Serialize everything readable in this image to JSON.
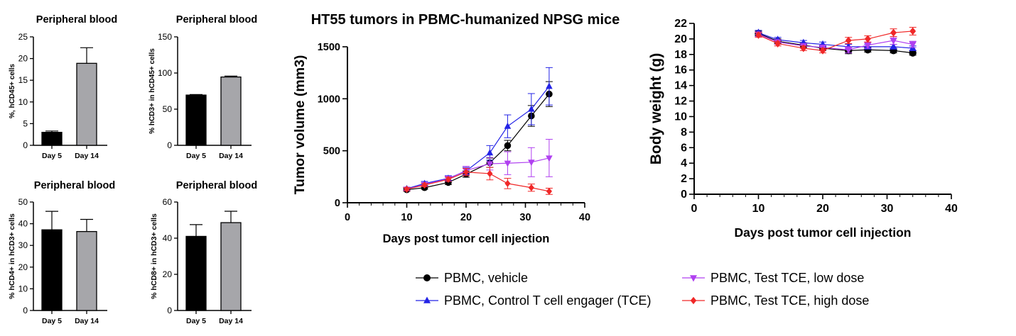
{
  "chart_data": [
    {
      "type": "bar",
      "title": "Peripheral blood",
      "ylabel": "%, hCD45+ cells",
      "categories": [
        "Day 5",
        "Day 14"
      ],
      "values": [
        3.0,
        18.9
      ],
      "errors": [
        0.3,
        3.6
      ],
      "colors": [
        "#000000",
        "#a6a6aa"
      ],
      "ylim": [
        0,
        25
      ],
      "yticks": [
        "0",
        "5",
        "10",
        "15",
        "20",
        "25"
      ]
    },
    {
      "type": "bar",
      "title": "Peripheral blood",
      "ylabel": "% hCD3+ in hCD45+ cells",
      "categories": [
        "Day 5",
        "Day 14"
      ],
      "values": [
        69.5,
        94.5
      ],
      "errors": [
        0.8,
        1.2
      ],
      "colors": [
        "#000000",
        "#a6a6aa"
      ],
      "ylim": [
        0,
        150
      ],
      "yticks": [
        "0",
        "50",
        "100",
        "150"
      ]
    },
    {
      "type": "bar",
      "title": "Peripheral blood",
      "ylabel": "% hCD4+ in hCD3+ cells",
      "categories": [
        "Day 5",
        "Day 14"
      ],
      "values": [
        37.2,
        36.4
      ],
      "errors": [
        8.5,
        5.6
      ],
      "colors": [
        "#000000",
        "#a6a6aa"
      ],
      "ylim": [
        0,
        50
      ],
      "yticks": [
        "0",
        "10",
        "20",
        "30",
        "40",
        "50"
      ]
    },
    {
      "type": "bar",
      "title": "Peripheral blood",
      "ylabel": "% hCD8+ in hCD3+ cells",
      "categories": [
        "Day 5",
        "Day 14"
      ],
      "values": [
        41.0,
        48.6
      ],
      "errors": [
        6.5,
        6.3
      ],
      "colors": [
        "#000000",
        "#a6a6aa"
      ],
      "ylim": [
        0,
        60
      ],
      "yticks": [
        "0",
        "20",
        "40",
        "60"
      ]
    },
    {
      "type": "line",
      "title": "HT55 tumors in PBMC-humanized NPSG mice",
      "xlabel": "Days post tumor cell injection",
      "ylabel": "Tumor volume (mm3)",
      "xlim": [
        0,
        40
      ],
      "ylim": [
        0,
        1500
      ],
      "xticks": [
        "0",
        "10",
        "20",
        "30",
        "40"
      ],
      "yticks": [
        "0",
        "500",
        "1000",
        "1500"
      ],
      "series": [
        {
          "name": "PBMC, vehicle",
          "color": "#000000",
          "marker": "circle",
          "x": [
            10,
            13,
            17,
            20,
            24,
            27,
            31,
            34
          ],
          "y": [
            125,
            145,
            195,
            275,
            385,
            550,
            835,
            1045
          ],
          "err": [
            15,
            15,
            20,
            30,
            45,
            50,
            100,
            120
          ]
        },
        {
          "name": "PBMC, Control T cell engager (TCE)",
          "color": "#2323e6",
          "marker": "triangle-up",
          "x": [
            10,
            13,
            17,
            20,
            24,
            27,
            31,
            34
          ],
          "y": [
            135,
            185,
            235,
            305,
            480,
            735,
            900,
            1120
          ],
          "err": [
            15,
            20,
            25,
            35,
            70,
            110,
            150,
            180
          ]
        },
        {
          "name": "PBMC, Test TCE, low dose",
          "color": "#b040f0",
          "marker": "triangle-down",
          "x": [
            10,
            13,
            17,
            20,
            24,
            27,
            31,
            34
          ],
          "y": [
            130,
            175,
            230,
            310,
            375,
            380,
            390,
            430
          ],
          "err": [
            15,
            20,
            25,
            40,
            60,
            110,
            140,
            180
          ]
        },
        {
          "name": "PBMC, Test TCE, high dose",
          "color": "#f02828",
          "marker": "diamond",
          "x": [
            10,
            13,
            17,
            20,
            24,
            27,
            31,
            34
          ],
          "y": [
            130,
            170,
            225,
            295,
            280,
            185,
            145,
            110
          ],
          "err": [
            15,
            15,
            20,
            35,
            60,
            50,
            35,
            30
          ]
        }
      ]
    },
    {
      "type": "line",
      "title": "",
      "xlabel": "Days post tumor cell injection",
      "ylabel": "Body weight (g)",
      "xlim": [
        0,
        40
      ],
      "ylim": [
        0,
        22
      ],
      "xticks": [
        "0",
        "10",
        "20",
        "30",
        "40"
      ],
      "yticks": [
        "0",
        "2",
        "4",
        "6",
        "8",
        "10",
        "12",
        "14",
        "16",
        "18",
        "20",
        "22"
      ],
      "series": [
        {
          "name": "PBMC, vehicle",
          "color": "#000000",
          "marker": "circle",
          "x": [
            10,
            13,
            17,
            20,
            24,
            27,
            31,
            34
          ],
          "y": [
            20.7,
            19.7,
            19.2,
            18.8,
            18.5,
            18.6,
            18.5,
            18.2
          ],
          "err": [
            0.3,
            0.3,
            0.3,
            0.3,
            0.4,
            0.3,
            0.3,
            0.3
          ]
        },
        {
          "name": "PBMC, Control T cell engager (TCE)",
          "color": "#2323e6",
          "marker": "triangle-up",
          "x": [
            10,
            13,
            17,
            20,
            24,
            27,
            31,
            34
          ],
          "y": [
            20.8,
            19.9,
            19.5,
            19.3,
            19.0,
            19.0,
            19.0,
            18.8
          ],
          "err": [
            0.3,
            0.3,
            0.3,
            0.3,
            0.3,
            0.3,
            0.3,
            0.3
          ]
        },
        {
          "name": "PBMC, Test TCE, low dose",
          "color": "#b040f0",
          "marker": "triangle-down",
          "x": [
            10,
            13,
            17,
            20,
            24,
            27,
            31,
            34
          ],
          "y": [
            20.6,
            19.6,
            19.1,
            18.9,
            18.6,
            19.2,
            19.8,
            19.3
          ],
          "err": [
            0.3,
            0.3,
            0.3,
            0.3,
            0.4,
            0.4,
            0.5,
            0.4
          ]
        },
        {
          "name": "PBMC, Test TCE, high dose",
          "color": "#f02828",
          "marker": "diamond",
          "x": [
            10,
            13,
            17,
            20,
            24,
            27,
            31,
            34
          ],
          "y": [
            20.5,
            19.4,
            18.8,
            18.5,
            19.8,
            20.0,
            20.8,
            21.0
          ],
          "err": [
            0.3,
            0.3,
            0.3,
            0.3,
            0.4,
            0.4,
            0.5,
            0.5
          ]
        }
      ]
    }
  ],
  "legend": [
    {
      "label": "PBMC, vehicle",
      "color": "#000000",
      "marker": "circle"
    },
    {
      "label": "PBMC, Control T cell engager (TCE)",
      "color": "#2323e6",
      "marker": "triangle-up"
    },
    {
      "label": "PBMC, Test TCE, low dose",
      "color": "#b040f0",
      "marker": "triangle-down"
    },
    {
      "label": "PBMC, Test TCE, high dose",
      "color": "#f02828",
      "marker": "diamond"
    }
  ]
}
